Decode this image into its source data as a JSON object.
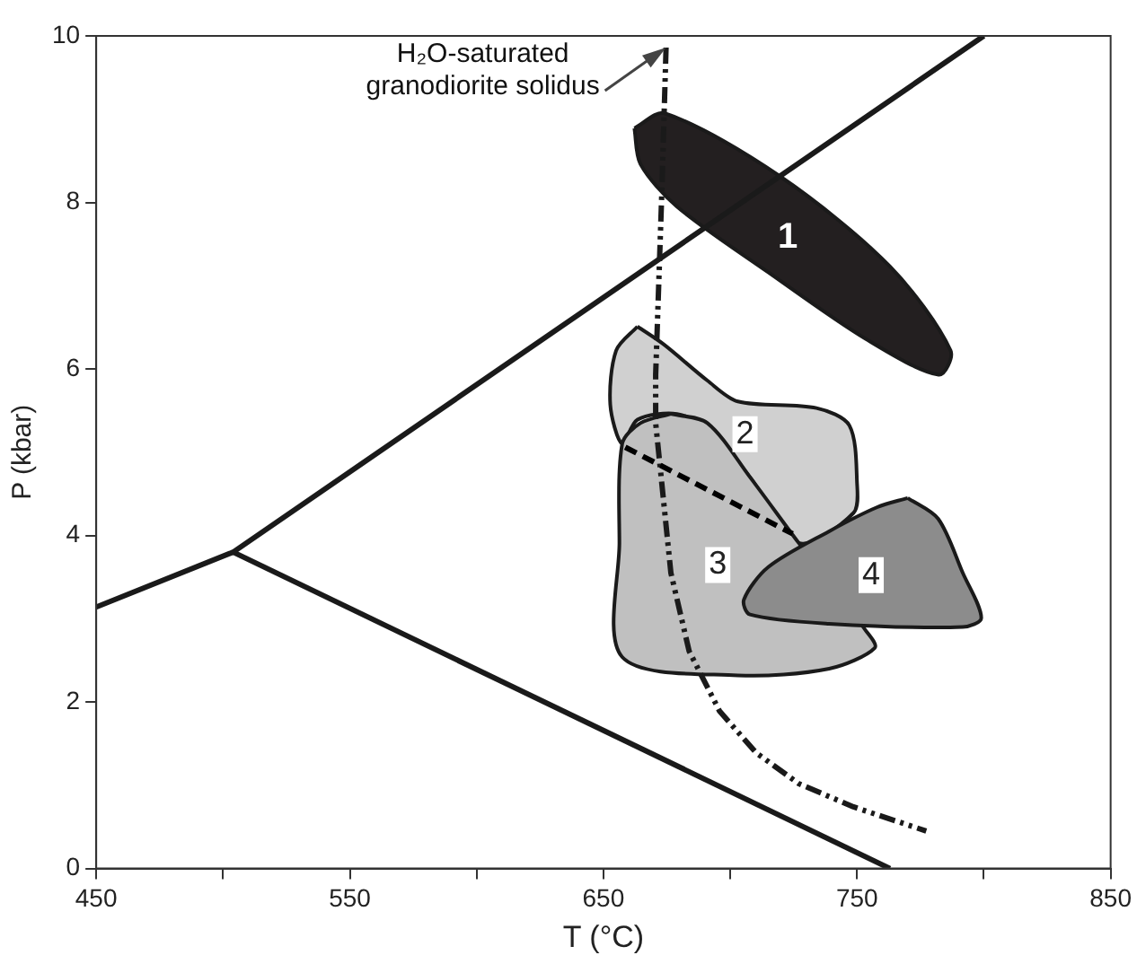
{
  "chart_data": {
    "type": "line",
    "xlabel": "T (°C)",
    "ylabel": "P (kbar)",
    "xlim": [
      450,
      850
    ],
    "xticks": [
      450,
      {
        "value": 500,
        "label": null
      },
      550,
      {
        "value": 600,
        "label": null
      },
      650,
      {
        "value": 700,
        "label": null
      },
      750,
      {
        "value": 800,
        "label": null
      },
      850
    ],
    "ylim": [
      0,
      10
    ],
    "yticks": [
      0,
      2,
      4,
      6,
      8,
      10
    ],
    "grid": false,
    "legend": false,
    "marker": "none",
    "series": [
      {
        "type": "area",
        "name": "1",
        "color": "#231f20",
        "x": [
          662.2,
          674.2,
          719.8,
          763,
          786.9,
          782.2,
          753.4,
          715,
          679,
          664.6
        ],
        "values": [
          8.89,
          9.07,
          8.31,
          7.23,
          6.22,
          5.93,
          6.36,
          7.16,
          7.95,
          8.46
        ]
      },
      {
        "type": "area",
        "name": "2",
        "color": "#d0d0d0",
        "x": [
          663.4,
          674,
          691,
          703,
          734,
          747,
          750,
          748.6,
          727,
          707.8,
          691,
          679,
          663.4,
          657.4,
          652.7,
          655
        ],
        "values": [
          6.51,
          6.29,
          5.86,
          5.61,
          5.53,
          5.32,
          4.63,
          4.27,
          3.91,
          4.7,
          5.28,
          5.46,
          5.39,
          5.1,
          5.57,
          6.22
        ]
      },
      {
        "type": "area",
        "name": "3",
        "color": "#c0c0c0",
        "x": [
          676.6,
          691,
          707.8,
          727,
          753.4,
          757,
          739,
          703,
          657.4,
          656.3,
          657.4,
          664.6
        ],
        "values": [
          5.46,
          5.35,
          4.7,
          3.91,
          2.86,
          2.65,
          2.4,
          2.32,
          2.54,
          3.91,
          5.1,
          5.35
        ]
      },
      {
        "type": "area",
        "name": "4",
        "color": "#8c8c8c",
        "x": [
          770,
          782,
          791.7,
          799,
          791.7,
          739,
          707.8,
          705.4,
          715,
          739,
          758
        ],
        "values": [
          4.45,
          4.2,
          3.55,
          3.01,
          2.9,
          2.94,
          3.05,
          3.23,
          3.62,
          4.05,
          4.34
        ]
      },
      {
        "type": "line",
        "color": "#000000",
        "line_style": "dashed",
        "x": [
          658.6,
          691,
          724.6
        ],
        "values": [
          5.06,
          4.55,
          4.02
        ]
      },
      {
        "type": "line",
        "color": "#1a1a1a",
        "line_style": "dotted",
        "x": [
          674.7,
          673,
          670.6,
          670.6,
          673,
          676.6,
          683.8,
          695.8,
          710.2,
          727,
          748.6,
          777.3
        ],
        "values": [
          9.86,
          8.1,
          5.93,
          5.35,
          4.63,
          3.55,
          2.61,
          1.89,
          1.39,
          1.02,
          0.74,
          0.45
        ]
      },
      {
        "type": "line",
        "color": "#1a1a1a",
        "x": [
          450,
          504,
          800
        ],
        "values": [
          3.14,
          3.8,
          10
        ]
      },
      {
        "type": "line",
        "color": "#1a1a1a",
        "x": [
          504,
          763
        ],
        "values": [
          3.8,
          0
        ]
      }
    ],
    "annotations": [
      {
        "text": "H₂O-saturated granodiorite solidus",
        "x": 674.7,
        "y": 9.86
      }
    ]
  }
}
